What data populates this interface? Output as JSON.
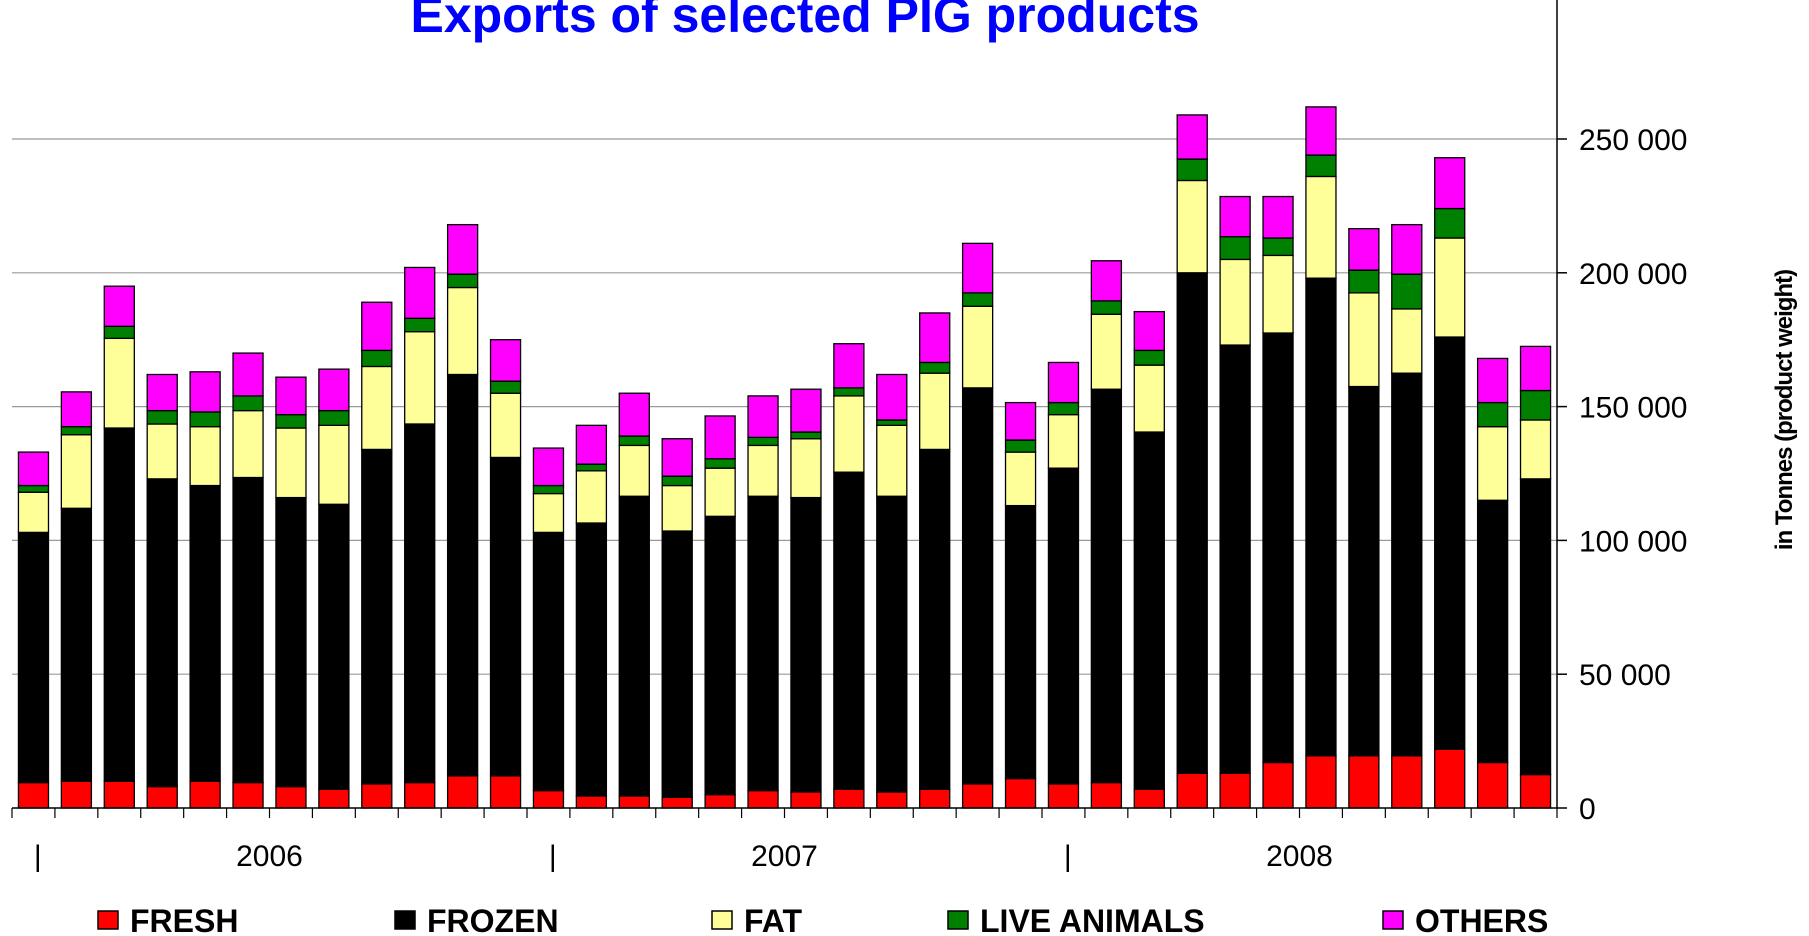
{
  "chart_data": {
    "type": "bar",
    "stacked": true,
    "title": "Exports of selected PIG products",
    "ylabel": "in Tonnes (product weight)",
    "ylim": [
      0,
      250000
    ],
    "yticks": [
      0,
      50000,
      100000,
      150000,
      200000,
      250000
    ],
    "ytick_labels": [
      "0",
      "50 000",
      "100 000",
      "150 000",
      "200 000",
      "250 000"
    ],
    "y_axis_side": "right",
    "grid": true,
    "legend_position": "bottom",
    "year_labels": [
      "2006",
      "2007",
      "2008"
    ],
    "year_separator_label": "|",
    "months_per_year": 12,
    "series": [
      {
        "name": "FRESH",
        "color": "#ff0000",
        "values": [
          9500,
          10000,
          10000,
          8000,
          10000,
          9500,
          8000,
          7000,
          9000,
          9500,
          12000,
          12000,
          6500,
          4500,
          4500,
          4000,
          5000,
          6500,
          6000,
          7000,
          6000,
          7000,
          9000,
          11000,
          9000,
          9500,
          7000,
          13000,
          13000,
          17000,
          19500,
          19500,
          19500,
          22000,
          17000,
          12500
        ]
      },
      {
        "name": "FROZEN",
        "color": "#000000",
        "values": [
          93500,
          102000,
          132000,
          115000,
          110500,
          114000,
          108000,
          106500,
          125000,
          134000,
          150000,
          119000,
          96500,
          102000,
          112000,
          99500,
          104000,
          110000,
          110000,
          118500,
          110500,
          127000,
          148000,
          102000,
          118000,
          147000,
          133500,
          187000,
          160000,
          160500,
          178500,
          138000,
          143000,
          154000,
          98000,
          110500
        ]
      },
      {
        "name": "FAT",
        "color": "#ffff99",
        "values": [
          15000,
          27500,
          33500,
          20500,
          22000,
          25000,
          26000,
          29500,
          31000,
          34500,
          32500,
          24000,
          14500,
          19500,
          19000,
          17000,
          18000,
          19000,
          22000,
          28500,
          26500,
          28500,
          30500,
          20000,
          20000,
          28000,
          25000,
          34500,
          32000,
          29000,
          38000,
          35000,
          24000,
          37000,
          27500,
          22000
        ]
      },
      {
        "name": "LIVE ANIMALS",
        "color": "#008000",
        "values": [
          2500,
          3000,
          4500,
          5000,
          5500,
          5500,
          5000,
          5500,
          6000,
          5000,
          5000,
          4500,
          3000,
          2500,
          3500,
          3500,
          3500,
          3000,
          2500,
          3000,
          2000,
          4000,
          5000,
          4500,
          4500,
          5000,
          5500,
          8000,
          8500,
          6500,
          8000,
          8500,
          13000,
          11000,
          9000,
          11000
        ]
      },
      {
        "name": "OTHERS",
        "color": "#ff00ff",
        "values": [
          12500,
          13000,
          15000,
          13500,
          15000,
          16000,
          14000,
          15500,
          18000,
          19000,
          18500,
          15500,
          14000,
          14500,
          16000,
          14000,
          16000,
          15500,
          16000,
          16500,
          17000,
          18500,
          18500,
          14000,
          15000,
          15000,
          14500,
          16500,
          15000,
          15500,
          18000,
          15500,
          18500,
          19000,
          16500,
          16500
        ]
      }
    ]
  }
}
